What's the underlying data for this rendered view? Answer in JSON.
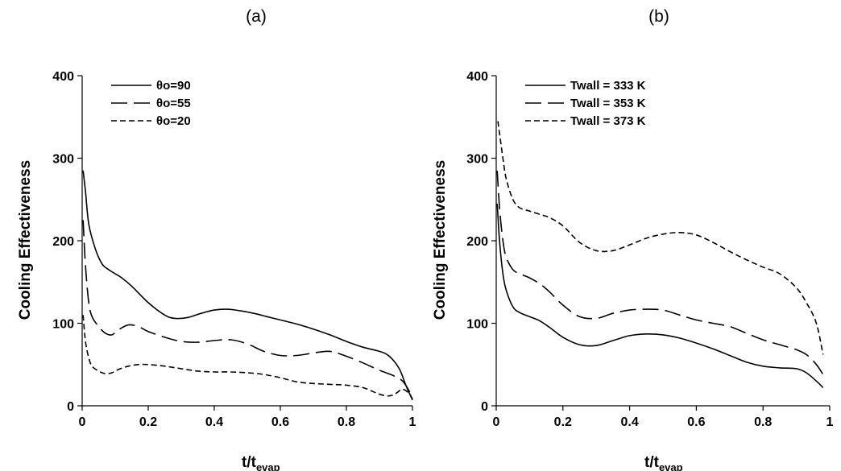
{
  "chart_data": [
    {
      "type": "line",
      "panel_label": "(a)",
      "xlabel_main": "t/t",
      "xlabel_sub": "evap",
      "ylabel": "Cooling Effectiveness",
      "xlim": [
        0,
        1
      ],
      "ylim": [
        0,
        400
      ],
      "xticks": [
        0,
        0.2,
        0.4,
        0.6,
        0.8,
        1
      ],
      "xtick_labels": [
        "0",
        "0.2",
        "0.4",
        "0.6",
        "0.8",
        "1"
      ],
      "yticks": [
        0,
        100,
        200,
        300,
        400
      ],
      "ytick_labels": [
        "0",
        "100",
        "200",
        "300",
        "400"
      ],
      "grid": false,
      "legend_position": "top-left",
      "series": [
        {
          "name": "θo=90",
          "dash": "solid",
          "x": [
            0.003,
            0.01,
            0.02,
            0.04,
            0.06,
            0.08,
            0.1,
            0.12,
            0.15,
            0.2,
            0.25,
            0.28,
            0.32,
            0.36,
            0.4,
            0.44,
            0.48,
            0.52,
            0.56,
            0.6,
            0.65,
            0.7,
            0.75,
            0.8,
            0.85,
            0.9,
            0.93,
            0.96,
            0.98,
            1.0
          ],
          "y": [
            285,
            260,
            220,
            190,
            172,
            165,
            160,
            155,
            145,
            125,
            110,
            106,
            107,
            112,
            116,
            117,
            115,
            112,
            108,
            104,
            99,
            93,
            86,
            78,
            71,
            66,
            60,
            45,
            25,
            7
          ]
        },
        {
          "name": "θo=55",
          "dash": "long",
          "x": [
            0.003,
            0.01,
            0.02,
            0.03,
            0.05,
            0.07,
            0.09,
            0.11,
            0.14,
            0.17,
            0.2,
            0.25,
            0.3,
            0.35,
            0.4,
            0.45,
            0.5,
            0.55,
            0.6,
            0.65,
            0.7,
            0.75,
            0.8,
            0.85,
            0.9,
            0.94,
            0.97,
            0.99,
            1.0
          ],
          "y": [
            225,
            170,
            125,
            108,
            96,
            88,
            86,
            92,
            98,
            96,
            90,
            83,
            78,
            77,
            79,
            80,
            75,
            66,
            61,
            61,
            64,
            66,
            60,
            52,
            43,
            37,
            30,
            18,
            8
          ]
        },
        {
          "name": "θo=20",
          "dash": "short",
          "x": [
            0.003,
            0.01,
            0.02,
            0.03,
            0.05,
            0.07,
            0.09,
            0.11,
            0.14,
            0.17,
            0.2,
            0.25,
            0.3,
            0.35,
            0.4,
            0.45,
            0.5,
            0.55,
            0.6,
            0.65,
            0.7,
            0.75,
            0.8,
            0.85,
            0.9,
            0.93,
            0.95,
            0.97,
            0.99,
            1.0
          ],
          "y": [
            110,
            78,
            58,
            48,
            42,
            39,
            40,
            44,
            48,
            50,
            50,
            48,
            45,
            42,
            41,
            41,
            40,
            38,
            34,
            29,
            27,
            26,
            25,
            22,
            14,
            12,
            15,
            20,
            15,
            8
          ]
        }
      ]
    },
    {
      "type": "line",
      "panel_label": "(b)",
      "xlabel_main": "t/t",
      "xlabel_sub": "evap",
      "ylabel": "Cooling Effectiveness",
      "xlim": [
        0,
        1
      ],
      "ylim": [
        0,
        400
      ],
      "xticks": [
        0,
        0.2,
        0.4,
        0.6,
        0.8,
        1
      ],
      "xtick_labels": [
        "0",
        "0.2",
        "0.4",
        "0.6",
        "0.8",
        "1"
      ],
      "yticks": [
        0,
        100,
        200,
        300,
        400
      ],
      "ytick_labels": [
        "0",
        "100",
        "200",
        "300",
        "400"
      ],
      "grid": false,
      "legend_position": "top-left",
      "series": [
        {
          "name": "Twall = 333 K",
          "dash": "solid",
          "x": [
            0.003,
            0.01,
            0.02,
            0.03,
            0.05,
            0.07,
            0.1,
            0.13,
            0.16,
            0.2,
            0.25,
            0.3,
            0.35,
            0.4,
            0.45,
            0.5,
            0.55,
            0.6,
            0.65,
            0.7,
            0.75,
            0.8,
            0.85,
            0.9,
            0.93,
            0.96,
            0.98
          ],
          "y": [
            245,
            200,
            160,
            140,
            120,
            113,
            108,
            103,
            95,
            83,
            74,
            73,
            79,
            85,
            87,
            86,
            82,
            76,
            69,
            61,
            53,
            48,
            46,
            45,
            40,
            30,
            22
          ]
        },
        {
          "name": "Twall = 353 K",
          "dash": "long",
          "x": [
            0.003,
            0.01,
            0.02,
            0.03,
            0.05,
            0.07,
            0.1,
            0.13,
            0.16,
            0.2,
            0.25,
            0.3,
            0.35,
            0.4,
            0.45,
            0.5,
            0.55,
            0.6,
            0.65,
            0.7,
            0.75,
            0.8,
            0.85,
            0.9,
            0.93,
            0.96,
            0.98
          ],
          "y": [
            285,
            240,
            200,
            180,
            165,
            160,
            155,
            148,
            138,
            122,
            108,
            106,
            112,
            116,
            117,
            116,
            110,
            104,
            100,
            96,
            88,
            80,
            74,
            68,
            62,
            50,
            38
          ]
        },
        {
          "name": "Twall = 373 K",
          "dash": "short",
          "x": [
            0.005,
            0.01,
            0.02,
            0.03,
            0.05,
            0.07,
            0.1,
            0.13,
            0.16,
            0.2,
            0.25,
            0.3,
            0.35,
            0.4,
            0.45,
            0.5,
            0.55,
            0.6,
            0.65,
            0.7,
            0.75,
            0.8,
            0.85,
            0.9,
            0.93,
            0.96,
            0.98
          ],
          "y": [
            345,
            330,
            300,
            275,
            250,
            240,
            236,
            232,
            228,
            218,
            198,
            188,
            188,
            195,
            203,
            208,
            210,
            207,
            198,
            187,
            177,
            168,
            160,
            143,
            125,
            100,
            62
          ]
        }
      ]
    }
  ]
}
